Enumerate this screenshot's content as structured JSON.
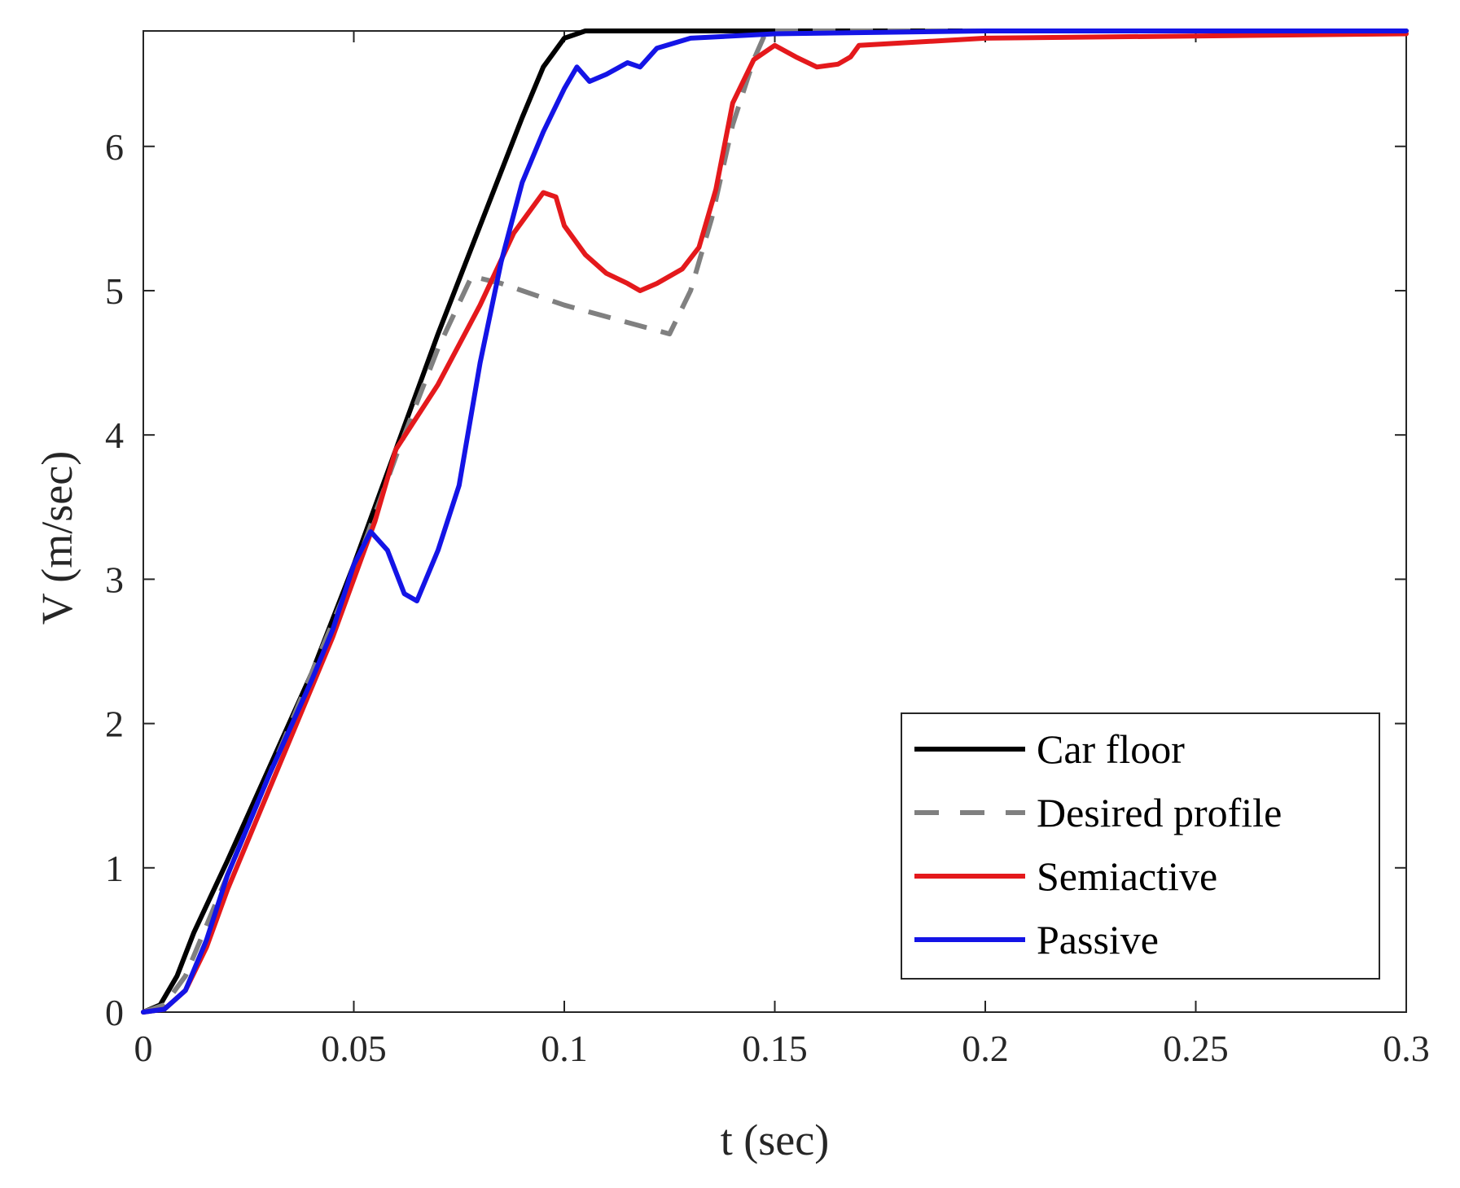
{
  "chart_data": {
    "type": "line",
    "title": "",
    "xlabel": "t (sec)",
    "ylabel": "V (m/sec)",
    "xlim": [
      0,
      0.3
    ],
    "ylim": [
      0,
      6.8
    ],
    "xticks": [
      0,
      0.05,
      0.1,
      0.15,
      0.2,
      0.25,
      0.3
    ],
    "xtick_labels": [
      "0",
      "0.05",
      "0.1",
      "0.15",
      "0.2",
      "0.25",
      "0.3"
    ],
    "yticks": [
      0,
      1,
      2,
      3,
      4,
      5,
      6
    ],
    "ytick_labels": [
      "0",
      "1",
      "2",
      "3",
      "4",
      "5",
      "6"
    ],
    "grid": false,
    "legend_position": "bottom-right",
    "series": [
      {
        "name": "Car floor",
        "color": "#000000",
        "dash": "solid",
        "points": [
          [
            0,
            0
          ],
          [
            0.004,
            0.05
          ],
          [
            0.008,
            0.25
          ],
          [
            0.012,
            0.55
          ],
          [
            0.02,
            1.05
          ],
          [
            0.03,
            1.7
          ],
          [
            0.04,
            2.35
          ],
          [
            0.05,
            3.1
          ],
          [
            0.06,
            3.9
          ],
          [
            0.07,
            4.7
          ],
          [
            0.08,
            5.45
          ],
          [
            0.09,
            6.2
          ],
          [
            0.095,
            6.55
          ],
          [
            0.1,
            6.75
          ],
          [
            0.105,
            6.8
          ],
          [
            0.15,
            6.8
          ],
          [
            0.3,
            6.8
          ]
        ]
      },
      {
        "name": "Desired profile",
        "color": "#808080",
        "dash": "dashed",
        "points": [
          [
            0,
            0
          ],
          [
            0.005,
            0.05
          ],
          [
            0.01,
            0.25
          ],
          [
            0.02,
            0.95
          ],
          [
            0.03,
            1.65
          ],
          [
            0.04,
            2.35
          ],
          [
            0.05,
            3.05
          ],
          [
            0.06,
            3.85
          ],
          [
            0.07,
            4.6
          ],
          [
            0.078,
            5.1
          ],
          [
            0.085,
            5.05
          ],
          [
            0.1,
            4.9
          ],
          [
            0.115,
            4.78
          ],
          [
            0.125,
            4.7
          ],
          [
            0.13,
            5.0
          ],
          [
            0.135,
            5.5
          ],
          [
            0.14,
            6.15
          ],
          [
            0.145,
            6.6
          ],
          [
            0.148,
            6.8
          ],
          [
            0.2,
            6.8
          ],
          [
            0.3,
            6.8
          ]
        ]
      },
      {
        "name": "Semiactive",
        "color": "#e4191c",
        "dash": "solid",
        "points": [
          [
            0,
            0
          ],
          [
            0.005,
            0.02
          ],
          [
            0.01,
            0.15
          ],
          [
            0.015,
            0.45
          ],
          [
            0.02,
            0.85
          ],
          [
            0.03,
            1.55
          ],
          [
            0.04,
            2.25
          ],
          [
            0.045,
            2.6
          ],
          [
            0.05,
            3.0
          ],
          [
            0.055,
            3.4
          ],
          [
            0.06,
            3.9
          ],
          [
            0.07,
            4.35
          ],
          [
            0.08,
            4.9
          ],
          [
            0.088,
            5.4
          ],
          [
            0.095,
            5.68
          ],
          [
            0.098,
            5.65
          ],
          [
            0.1,
            5.45
          ],
          [
            0.105,
            5.25
          ],
          [
            0.11,
            5.12
          ],
          [
            0.115,
            5.05
          ],
          [
            0.118,
            5.0
          ],
          [
            0.122,
            5.05
          ],
          [
            0.128,
            5.15
          ],
          [
            0.132,
            5.3
          ],
          [
            0.136,
            5.7
          ],
          [
            0.14,
            6.3
          ],
          [
            0.145,
            6.6
          ],
          [
            0.15,
            6.7
          ],
          [
            0.155,
            6.62
          ],
          [
            0.16,
            6.55
          ],
          [
            0.165,
            6.57
          ],
          [
            0.168,
            6.62
          ],
          [
            0.17,
            6.7
          ],
          [
            0.2,
            6.75
          ],
          [
            0.3,
            6.78
          ]
        ]
      },
      {
        "name": "Passive",
        "color": "#1414e6",
        "dash": "solid",
        "points": [
          [
            0,
            0
          ],
          [
            0.005,
            0.02
          ],
          [
            0.01,
            0.15
          ],
          [
            0.015,
            0.5
          ],
          [
            0.02,
            0.95
          ],
          [
            0.03,
            1.65
          ],
          [
            0.04,
            2.3
          ],
          [
            0.045,
            2.65
          ],
          [
            0.05,
            3.1
          ],
          [
            0.054,
            3.33
          ],
          [
            0.058,
            3.2
          ],
          [
            0.062,
            2.9
          ],
          [
            0.065,
            2.85
          ],
          [
            0.07,
            3.2
          ],
          [
            0.075,
            3.65
          ],
          [
            0.08,
            4.5
          ],
          [
            0.085,
            5.2
          ],
          [
            0.09,
            5.75
          ],
          [
            0.095,
            6.1
          ],
          [
            0.1,
            6.4
          ],
          [
            0.103,
            6.55
          ],
          [
            0.106,
            6.45
          ],
          [
            0.11,
            6.5
          ],
          [
            0.115,
            6.58
          ],
          [
            0.118,
            6.55
          ],
          [
            0.122,
            6.68
          ],
          [
            0.13,
            6.75
          ],
          [
            0.15,
            6.78
          ],
          [
            0.2,
            6.8
          ],
          [
            0.3,
            6.8
          ]
        ]
      }
    ]
  }
}
